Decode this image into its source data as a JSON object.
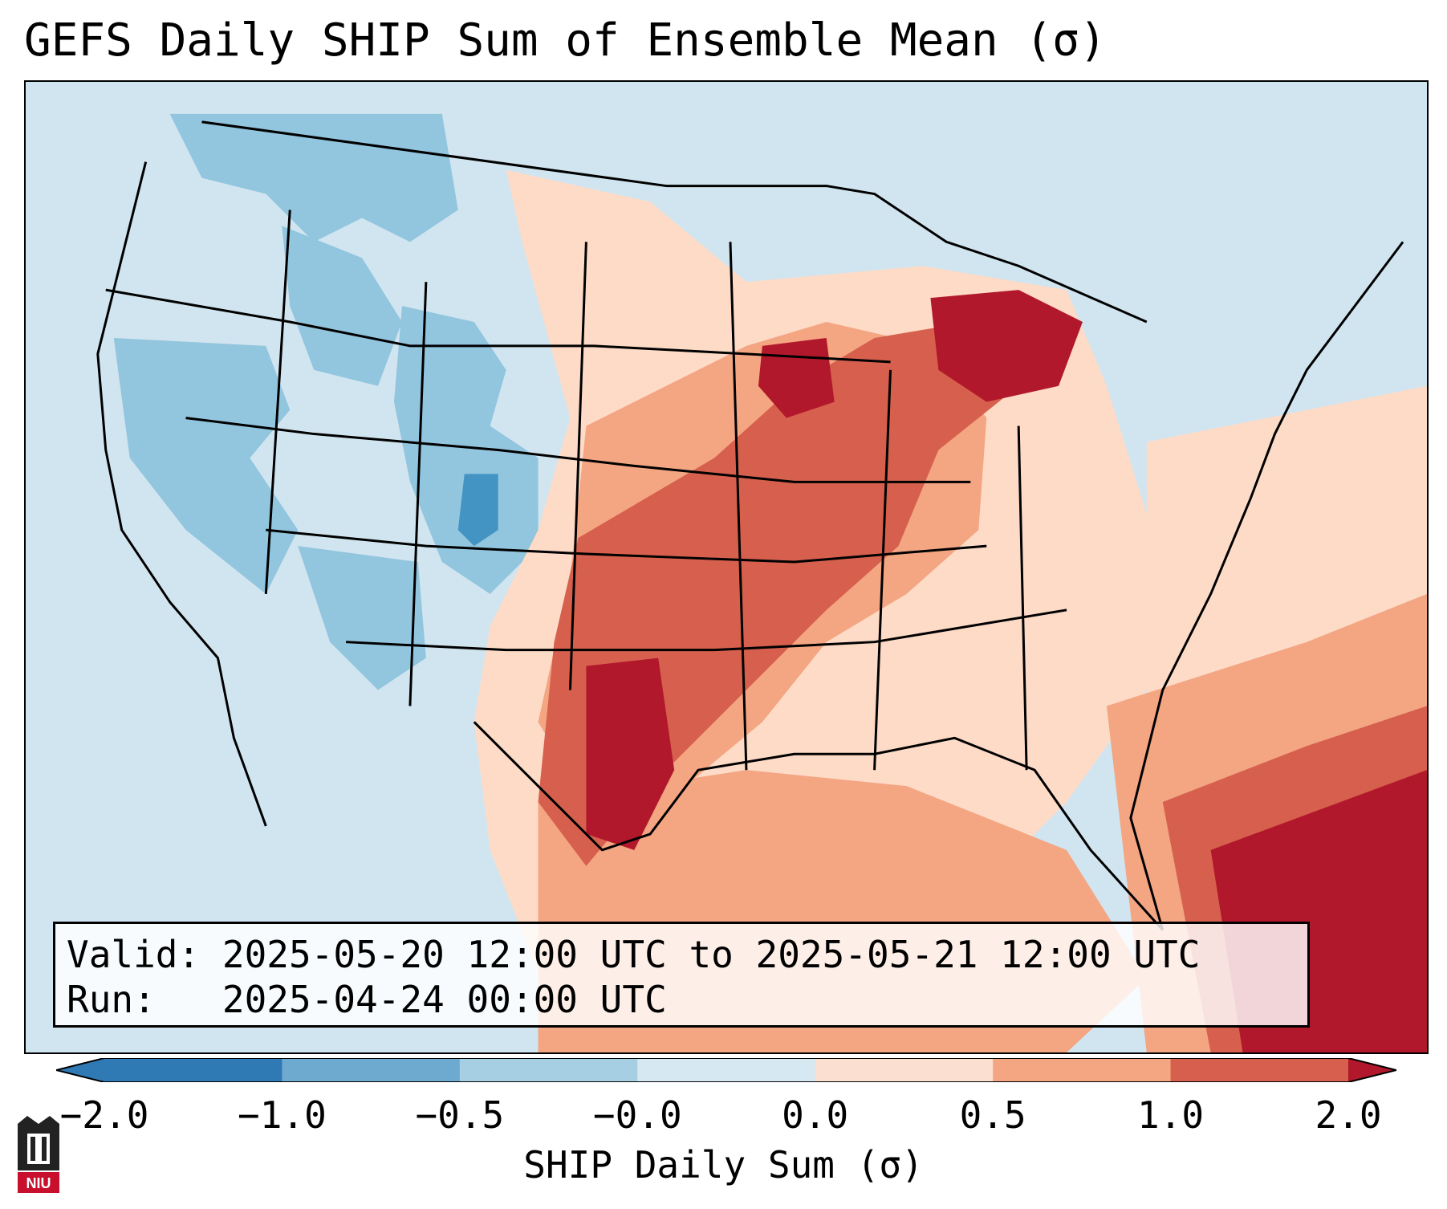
{
  "title": "GEFS Daily SHIP Sum of Ensemble Mean (σ)",
  "info": {
    "valid_label": "Valid:",
    "valid_value": "2025-05-20 12:00 UTC to 2025-05-21 12:00 UTC",
    "run_label": "Run:",
    "run_value": "2025-04-24 00:00 UTC"
  },
  "colorbar": {
    "label": "SHIP Daily Sum (σ)",
    "ticks": [
      "−2.0",
      "−1.0",
      "−0.5",
      "−0.0",
      "0.0",
      "0.5",
      "1.0",
      "2.0"
    ],
    "colors": [
      "#2f79b5",
      "#6eaad0",
      "#a7cfe4",
      "#d6e9f2",
      "#fbe0d1",
      "#f4a582",
      "#d6604d",
      "#b2182b"
    ],
    "extend": "both"
  },
  "logo": {
    "text": "NIU",
    "name": "niu-logo"
  },
  "palette": {
    "ocean_low": "#d2e5f0",
    "blue_strong": "#4393c3",
    "blue_mid": "#92c5de",
    "blue_light": "#d1e5f0",
    "red_light": "#fddbc7",
    "red_mid": "#f4a582",
    "red_strong": "#d6604d",
    "red_max": "#b2182b"
  }
}
